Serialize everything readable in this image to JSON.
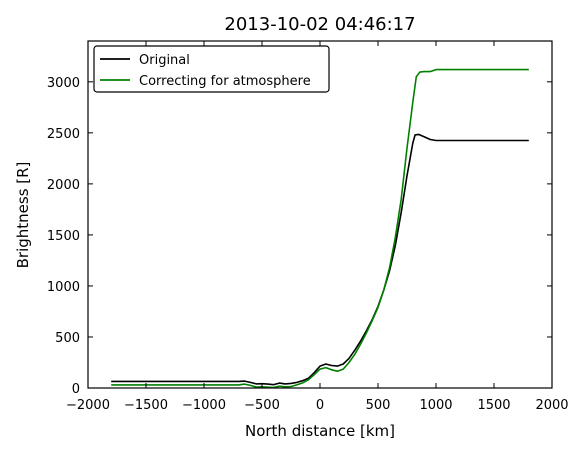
{
  "chart_data": {
    "type": "line",
    "title": "2013-10-02 04:46:17",
    "xlabel": "North distance [km]",
    "ylabel": "Brightness [R]",
    "xlim": [
      -2000,
      2000
    ],
    "ylim": [
      0,
      3400
    ],
    "x_ticks": [
      -2000,
      -1500,
      -1000,
      -500,
      0,
      500,
      1000,
      1500,
      2000
    ],
    "y_ticks": [
      0,
      500,
      1000,
      1500,
      2000,
      2500,
      3000
    ],
    "x_tick_labels": [
      "−2000",
      "−1500",
      "−1000",
      "−500",
      "0",
      "500",
      "1000",
      "1500",
      "2000"
    ],
    "y_tick_labels": [
      "0",
      "500",
      "1000",
      "1500",
      "2000",
      "2500",
      "3000"
    ],
    "grid": false,
    "legend_position": "top-left",
    "series": [
      {
        "name": "Original",
        "color": "#000000",
        "points": [
          [
            -1800,
            65
          ],
          [
            -1500,
            65
          ],
          [
            -1200,
            65
          ],
          [
            -900,
            65
          ],
          [
            -700,
            65
          ],
          [
            -650,
            68
          ],
          [
            -600,
            55
          ],
          [
            -550,
            40
          ],
          [
            -500,
            42
          ],
          [
            -450,
            38
          ],
          [
            -400,
            32
          ],
          [
            -350,
            48
          ],
          [
            -300,
            40
          ],
          [
            -250,
            45
          ],
          [
            -200,
            55
          ],
          [
            -150,
            72
          ],
          [
            -100,
            95
          ],
          [
            -50,
            150
          ],
          [
            0,
            215
          ],
          [
            50,
            235
          ],
          [
            100,
            220
          ],
          [
            150,
            215
          ],
          [
            200,
            235
          ],
          [
            250,
            290
          ],
          [
            300,
            370
          ],
          [
            350,
            460
          ],
          [
            400,
            560
          ],
          [
            450,
            670
          ],
          [
            500,
            800
          ],
          [
            550,
            960
          ],
          [
            600,
            1150
          ],
          [
            650,
            1400
          ],
          [
            700,
            1720
          ],
          [
            750,
            2080
          ],
          [
            800,
            2400
          ],
          [
            820,
            2480
          ],
          [
            850,
            2485
          ],
          [
            900,
            2460
          ],
          [
            950,
            2435
          ],
          [
            1000,
            2425
          ],
          [
            1200,
            2425
          ],
          [
            1500,
            2425
          ],
          [
            1800,
            2425
          ]
        ]
      },
      {
        "name": "Correcting for atmosphere",
        "color": "#008000",
        "points": [
          [
            -1800,
            30
          ],
          [
            -1500,
            30
          ],
          [
            -1200,
            30
          ],
          [
            -900,
            30
          ],
          [
            -700,
            30
          ],
          [
            -650,
            38
          ],
          [
            -600,
            25
          ],
          [
            -550,
            10
          ],
          [
            -500,
            12
          ],
          [
            -450,
            8
          ],
          [
            -400,
            5
          ],
          [
            -350,
            18
          ],
          [
            -300,
            12
          ],
          [
            -250,
            15
          ],
          [
            -200,
            30
          ],
          [
            -150,
            50
          ],
          [
            -100,
            80
          ],
          [
            -50,
            130
          ],
          [
            0,
            185
          ],
          [
            50,
            200
          ],
          [
            100,
            178
          ],
          [
            150,
            165
          ],
          [
            200,
            185
          ],
          [
            250,
            250
          ],
          [
            300,
            330
          ],
          [
            350,
            430
          ],
          [
            400,
            540
          ],
          [
            450,
            660
          ],
          [
            500,
            790
          ],
          [
            550,
            960
          ],
          [
            600,
            1180
          ],
          [
            650,
            1480
          ],
          [
            700,
            1850
          ],
          [
            750,
            2350
          ],
          [
            800,
            2800
          ],
          [
            830,
            3050
          ],
          [
            860,
            3095
          ],
          [
            900,
            3100
          ],
          [
            950,
            3100
          ],
          [
            1000,
            3120
          ],
          [
            1200,
            3120
          ],
          [
            1500,
            3120
          ],
          [
            1800,
            3120
          ]
        ]
      }
    ]
  }
}
